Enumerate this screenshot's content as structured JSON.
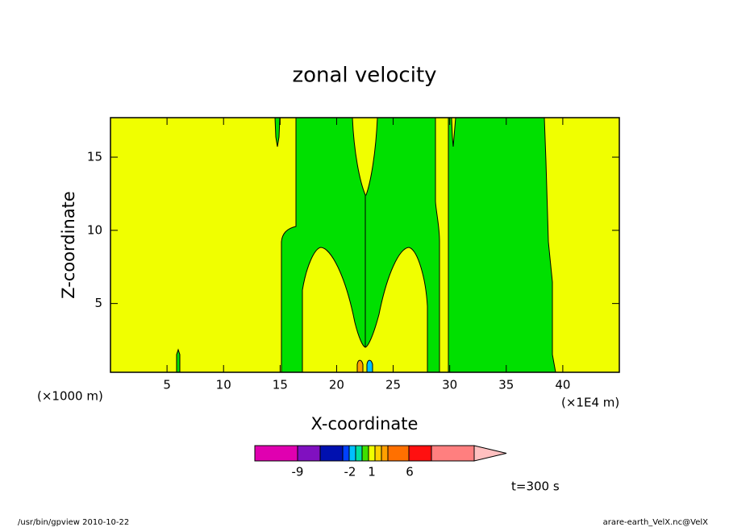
{
  "chart_data": {
    "type": "contour",
    "title": "zonal velocity",
    "x_label": "X-coordinate",
    "y_label": "Z-coordinate",
    "x_scale_note": "(×1000 m)",
    "x_unit_note": "(×1E4 m)",
    "xlim": [
      0,
      45
    ],
    "xticks": [
      5,
      10,
      15,
      20,
      25,
      30,
      35,
      40
    ],
    "ylim": [
      0.3,
      17.7
    ],
    "yticks": [
      5,
      10,
      15
    ],
    "fill_colors": {
      "low": "#f0ff00",
      "high": "#00e000"
    },
    "colorbar": {
      "colors": [
        "#e000b0",
        "#8010c0",
        "#0010b0",
        "#0040ff",
        "#00c0ff",
        "#00e0a0",
        "#40e000",
        "#f0ff00",
        "#ffd000",
        "#ffa000",
        "#ff7000",
        "#ff1010",
        "#ff7f7f",
        "#ffc0c0"
      ],
      "ticks": [
        -9,
        -2,
        1,
        6
      ]
    },
    "annotation": "t=300 s",
    "footer_left": "/usr/bin/gpview  2010-10-22",
    "footer_right": "arare-earth_VelX.nc@VelX"
  }
}
